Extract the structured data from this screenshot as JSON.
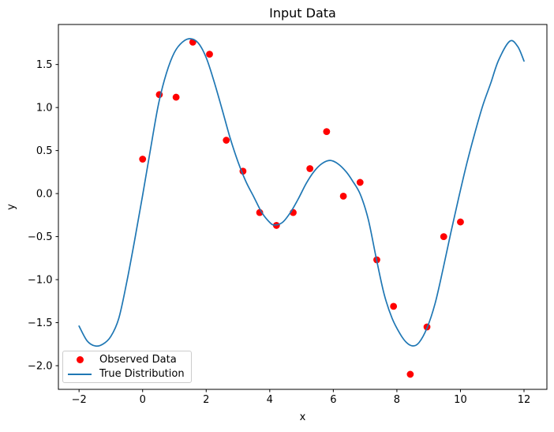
{
  "figure": {
    "background": "#ffffff",
    "frame_color": "#000000",
    "legend_border_color": "#cccccc"
  },
  "chart_data": {
    "type": "scatter",
    "title": "Input Data",
    "xlabel": "x",
    "ylabel": "y",
    "xlim": [
      -2.65,
      12.72
    ],
    "ylim": [
      -2.275,
      1.965
    ],
    "xticks": [
      -2,
      0,
      2,
      4,
      6,
      8,
      10,
      12
    ],
    "xtick_labels": [
      "−2",
      "0",
      "2",
      "4",
      "6",
      "8",
      "10",
      "12"
    ],
    "yticks": [
      1.5,
      1.0,
      0.5,
      0.0,
      -0.5,
      -1.0,
      -1.5,
      -2.0
    ],
    "ytick_labels": [
      "1.5",
      "1.0",
      "0.5",
      "0.0",
      "−0.5",
      "−1.0",
      "−1.5",
      "−2.0"
    ],
    "grid": false,
    "legend_position": "lower left",
    "series": [
      {
        "name": "Observed Data",
        "type": "scatter",
        "color": "#ff0000",
        "marker": "circle",
        "marker_radius": 4.4,
        "points": [
          [
            0.0,
            0.4
          ],
          [
            0.526,
            1.15
          ],
          [
            1.053,
            1.12
          ],
          [
            1.579,
            1.76
          ],
          [
            2.105,
            1.62
          ],
          [
            2.632,
            0.62
          ],
          [
            3.158,
            0.26
          ],
          [
            3.684,
            -0.22
          ],
          [
            4.211,
            -0.37
          ],
          [
            4.737,
            -0.22
          ],
          [
            5.263,
            0.29
          ],
          [
            5.789,
            0.72
          ],
          [
            6.316,
            -0.03
          ],
          [
            6.842,
            0.13
          ],
          [
            7.368,
            -0.77
          ],
          [
            7.895,
            -1.31
          ],
          [
            8.421,
            -2.1
          ],
          [
            8.947,
            -1.55
          ],
          [
            9.474,
            -0.5
          ],
          [
            10.0,
            -0.33
          ]
        ]
      },
      {
        "name": "True Distribution",
        "type": "line",
        "color": "#1f77b4",
        "line_width": 1.7,
        "points": [
          [
            -2.0,
            -1.54
          ],
          [
            -1.75,
            -1.71
          ],
          [
            -1.5,
            -1.77
          ],
          [
            -1.25,
            -1.75
          ],
          [
            -1.0,
            -1.66
          ],
          [
            -0.75,
            -1.45
          ],
          [
            -0.5,
            -1.03
          ],
          [
            -0.25,
            -0.54
          ],
          [
            0.0,
            -0.02
          ],
          [
            0.25,
            0.52
          ],
          [
            0.5,
            1.04
          ],
          [
            0.75,
            1.4
          ],
          [
            1.0,
            1.64
          ],
          [
            1.25,
            1.76
          ],
          [
            1.5,
            1.8
          ],
          [
            1.75,
            1.75
          ],
          [
            2.0,
            1.58
          ],
          [
            2.25,
            1.3
          ],
          [
            2.5,
            0.98
          ],
          [
            2.75,
            0.65
          ],
          [
            3.0,
            0.37
          ],
          [
            3.25,
            0.14
          ],
          [
            3.5,
            -0.04
          ],
          [
            3.75,
            -0.22
          ],
          [
            4.0,
            -0.335
          ],
          [
            4.15,
            -0.365
          ],
          [
            4.4,
            -0.335
          ],
          [
            4.65,
            -0.22
          ],
          [
            4.9,
            -0.06
          ],
          [
            5.15,
            0.12
          ],
          [
            5.4,
            0.26
          ],
          [
            5.65,
            0.35
          ],
          [
            5.9,
            0.385
          ],
          [
            6.15,
            0.345
          ],
          [
            6.4,
            0.255
          ],
          [
            6.6,
            0.15
          ],
          [
            6.85,
            -0.01
          ],
          [
            7.1,
            -0.3
          ],
          [
            7.35,
            -0.75
          ],
          [
            7.6,
            -1.17
          ],
          [
            7.85,
            -1.45
          ],
          [
            8.1,
            -1.63
          ],
          [
            8.3,
            -1.73
          ],
          [
            8.5,
            -1.77
          ],
          [
            8.7,
            -1.73
          ],
          [
            8.95,
            -1.56
          ],
          [
            9.2,
            -1.28
          ],
          [
            9.45,
            -0.88
          ],
          [
            9.7,
            -0.45
          ],
          [
            9.95,
            -0.04
          ],
          [
            10.2,
            0.35
          ],
          [
            10.45,
            0.7
          ],
          [
            10.7,
            1.02
          ],
          [
            10.95,
            1.28
          ],
          [
            11.2,
            1.55
          ],
          [
            11.55,
            1.77
          ],
          [
            11.8,
            1.71
          ],
          [
            12.0,
            1.54
          ]
        ]
      }
    ]
  }
}
